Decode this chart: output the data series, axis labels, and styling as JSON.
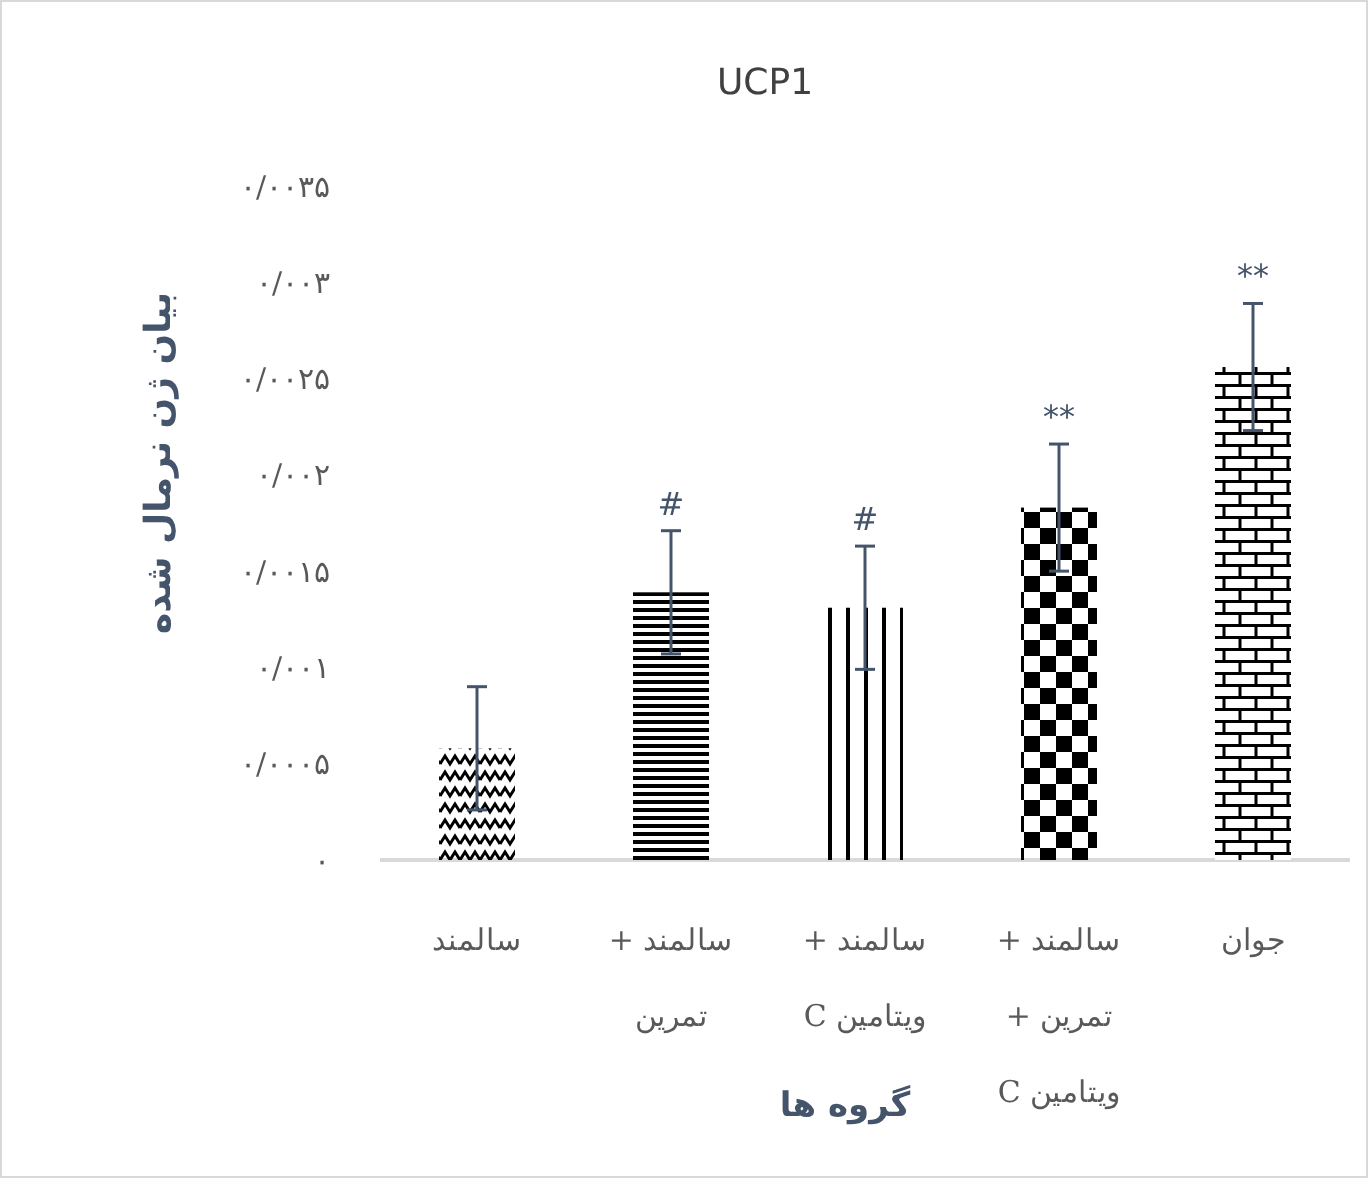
{
  "chart_data": {
    "type": "bar",
    "title": "UCP1",
    "xlabel": "گروه ها",
    "ylabel": "بیان ژن نرمال شده",
    "categories": [
      "سالمند",
      "سالمند + تمرین",
      "سالمند + ویتامین C",
      "سالمند + تمرین + ویتامین C",
      "جوان"
    ],
    "values": [
      0.00058,
      0.00139,
      0.00131,
      0.00183,
      0.00256
    ],
    "errors": [
      0.00032,
      0.00032,
      0.00032,
      0.00033,
      0.00033
    ],
    "colors": [
      "#000000",
      "#000000",
      "#000000",
      "#000000",
      "#000000"
    ],
    "ylim": [
      0,
      0.0035
    ],
    "yticks": [
      {
        "value": 0,
        "label": "۰"
      },
      {
        "value": 0.0005,
        "label": "۰/۰۰۰۵"
      },
      {
        "value": 0.001,
        "label": "۰/۰۰۱"
      },
      {
        "value": 0.0015,
        "label": "۰/۰۰۱۵"
      },
      {
        "value": 0.002,
        "label": "۰/۰۰۲"
      },
      {
        "value": 0.0025,
        "label": "۰/۰۰۲۵"
      },
      {
        "value": 0.003,
        "label": "۰/۰۰۳"
      },
      {
        "value": 0.0035,
        "label": "۰/۰۰۳۵"
      }
    ],
    "annotations": [
      {
        "text": "#",
        "x": "سالمند + تمرین",
        "y": 0.00171
      },
      {
        "text": "#",
        "x": "سالمند + ویتامین C",
        "y": 0.00163
      },
      {
        "text": "**",
        "x": "سالمند + تمرین + ویتامین C",
        "y": 0.00216
      },
      {
        "text": "**",
        "x": "جوان",
        "y": 0.00289
      }
    ],
    "grid": false
  }
}
